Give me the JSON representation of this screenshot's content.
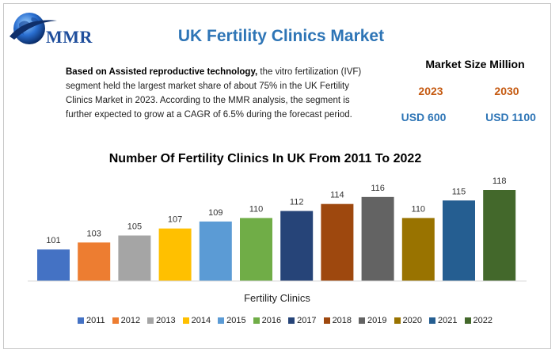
{
  "header": {
    "logo_text": "MMR",
    "title": "UK Fertility Clinics Market"
  },
  "description": {
    "bold_lead": "Based on Assisted reproductive technology,",
    "body": " the vitro fertilization (IVF) segment held the largest market share of about 75% in the UK Fertility Clinics Market in 2023.  According to the MMR analysis, the segment is further expected to grow at a CAGR of 6.5% during the forecast period."
  },
  "market_size": {
    "title": "Market Size Million",
    "year_a": "2023",
    "year_b": "2030",
    "value_a": "USD 600",
    "value_b": "USD 1100"
  },
  "colors": {
    "title_blue": "#2e75b6",
    "year_orange": "#c55a11",
    "logo_blue": "#1f4e9c"
  },
  "chart_data": {
    "type": "bar",
    "title": "Number Of Fertility Clinics In UK From 2011 To 2022",
    "xlabel": "Fertility Clinics",
    "ylabel": "",
    "categories": [
      "2011",
      "2012",
      "2013",
      "2014",
      "2015",
      "2016",
      "2017",
      "2018",
      "2019",
      "2020",
      "2021",
      "2022"
    ],
    "values": [
      101,
      103,
      105,
      107,
      109,
      110,
      112,
      114,
      116,
      110,
      115,
      118
    ],
    "colors": [
      "#4472c4",
      "#ed7d31",
      "#a5a5a5",
      "#ffc000",
      "#5b9bd5",
      "#70ad47",
      "#264478",
      "#9e480e",
      "#636363",
      "#997300",
      "#255e91",
      "#43682b"
    ],
    "ylim": [
      92,
      120
    ],
    "legend": "bottom",
    "grid": false,
    "data_labels": true
  }
}
